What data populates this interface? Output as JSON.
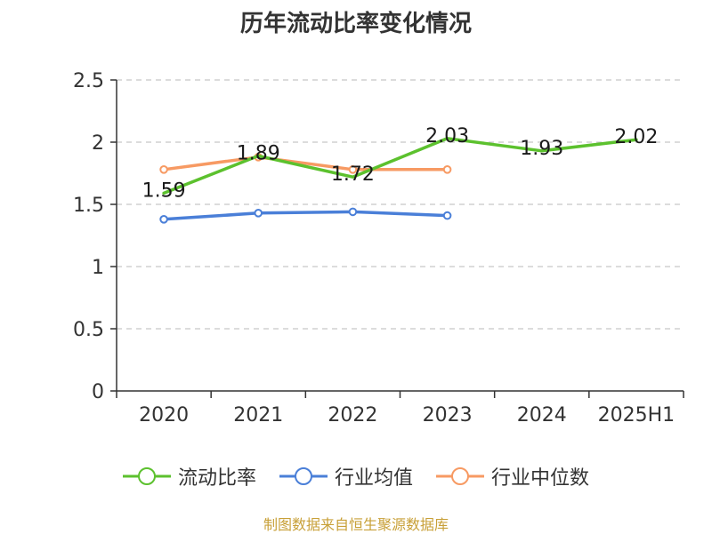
{
  "chart_data": {
    "type": "line",
    "title": "历年流动比率变化情况",
    "categories": [
      "2020",
      "2021",
      "2022",
      "2023",
      "2024",
      "2025H1"
    ],
    "ylim": [
      0,
      2.5
    ],
    "yticks": [
      "0",
      "0.5",
      "1",
      "1.5",
      "2",
      "2.5"
    ],
    "ytick_values": [
      0,
      0.5,
      1,
      1.5,
      2,
      2.5
    ],
    "grid": true,
    "legend_position": "bottom",
    "series": [
      {
        "name": "流动比率",
        "color": "#5cc12e",
        "values": [
          1.59,
          1.89,
          1.72,
          2.03,
          1.93,
          2.02
        ],
        "labels": [
          "1.59",
          "1.89",
          "1.72",
          "2.03",
          "1.93",
          "2.02"
        ],
        "show_markers": false
      },
      {
        "name": "行业均值",
        "color": "#4a7fd8",
        "values": [
          1.38,
          1.43,
          1.44,
          1.41,
          null,
          null
        ],
        "show_markers": true
      },
      {
        "name": "行业中位数",
        "color": "#f79a63",
        "values": [
          1.78,
          1.88,
          1.78,
          1.78,
          null,
          null
        ],
        "show_markers": true
      }
    ]
  },
  "source_note": "制图数据来自恒生聚源数据库"
}
